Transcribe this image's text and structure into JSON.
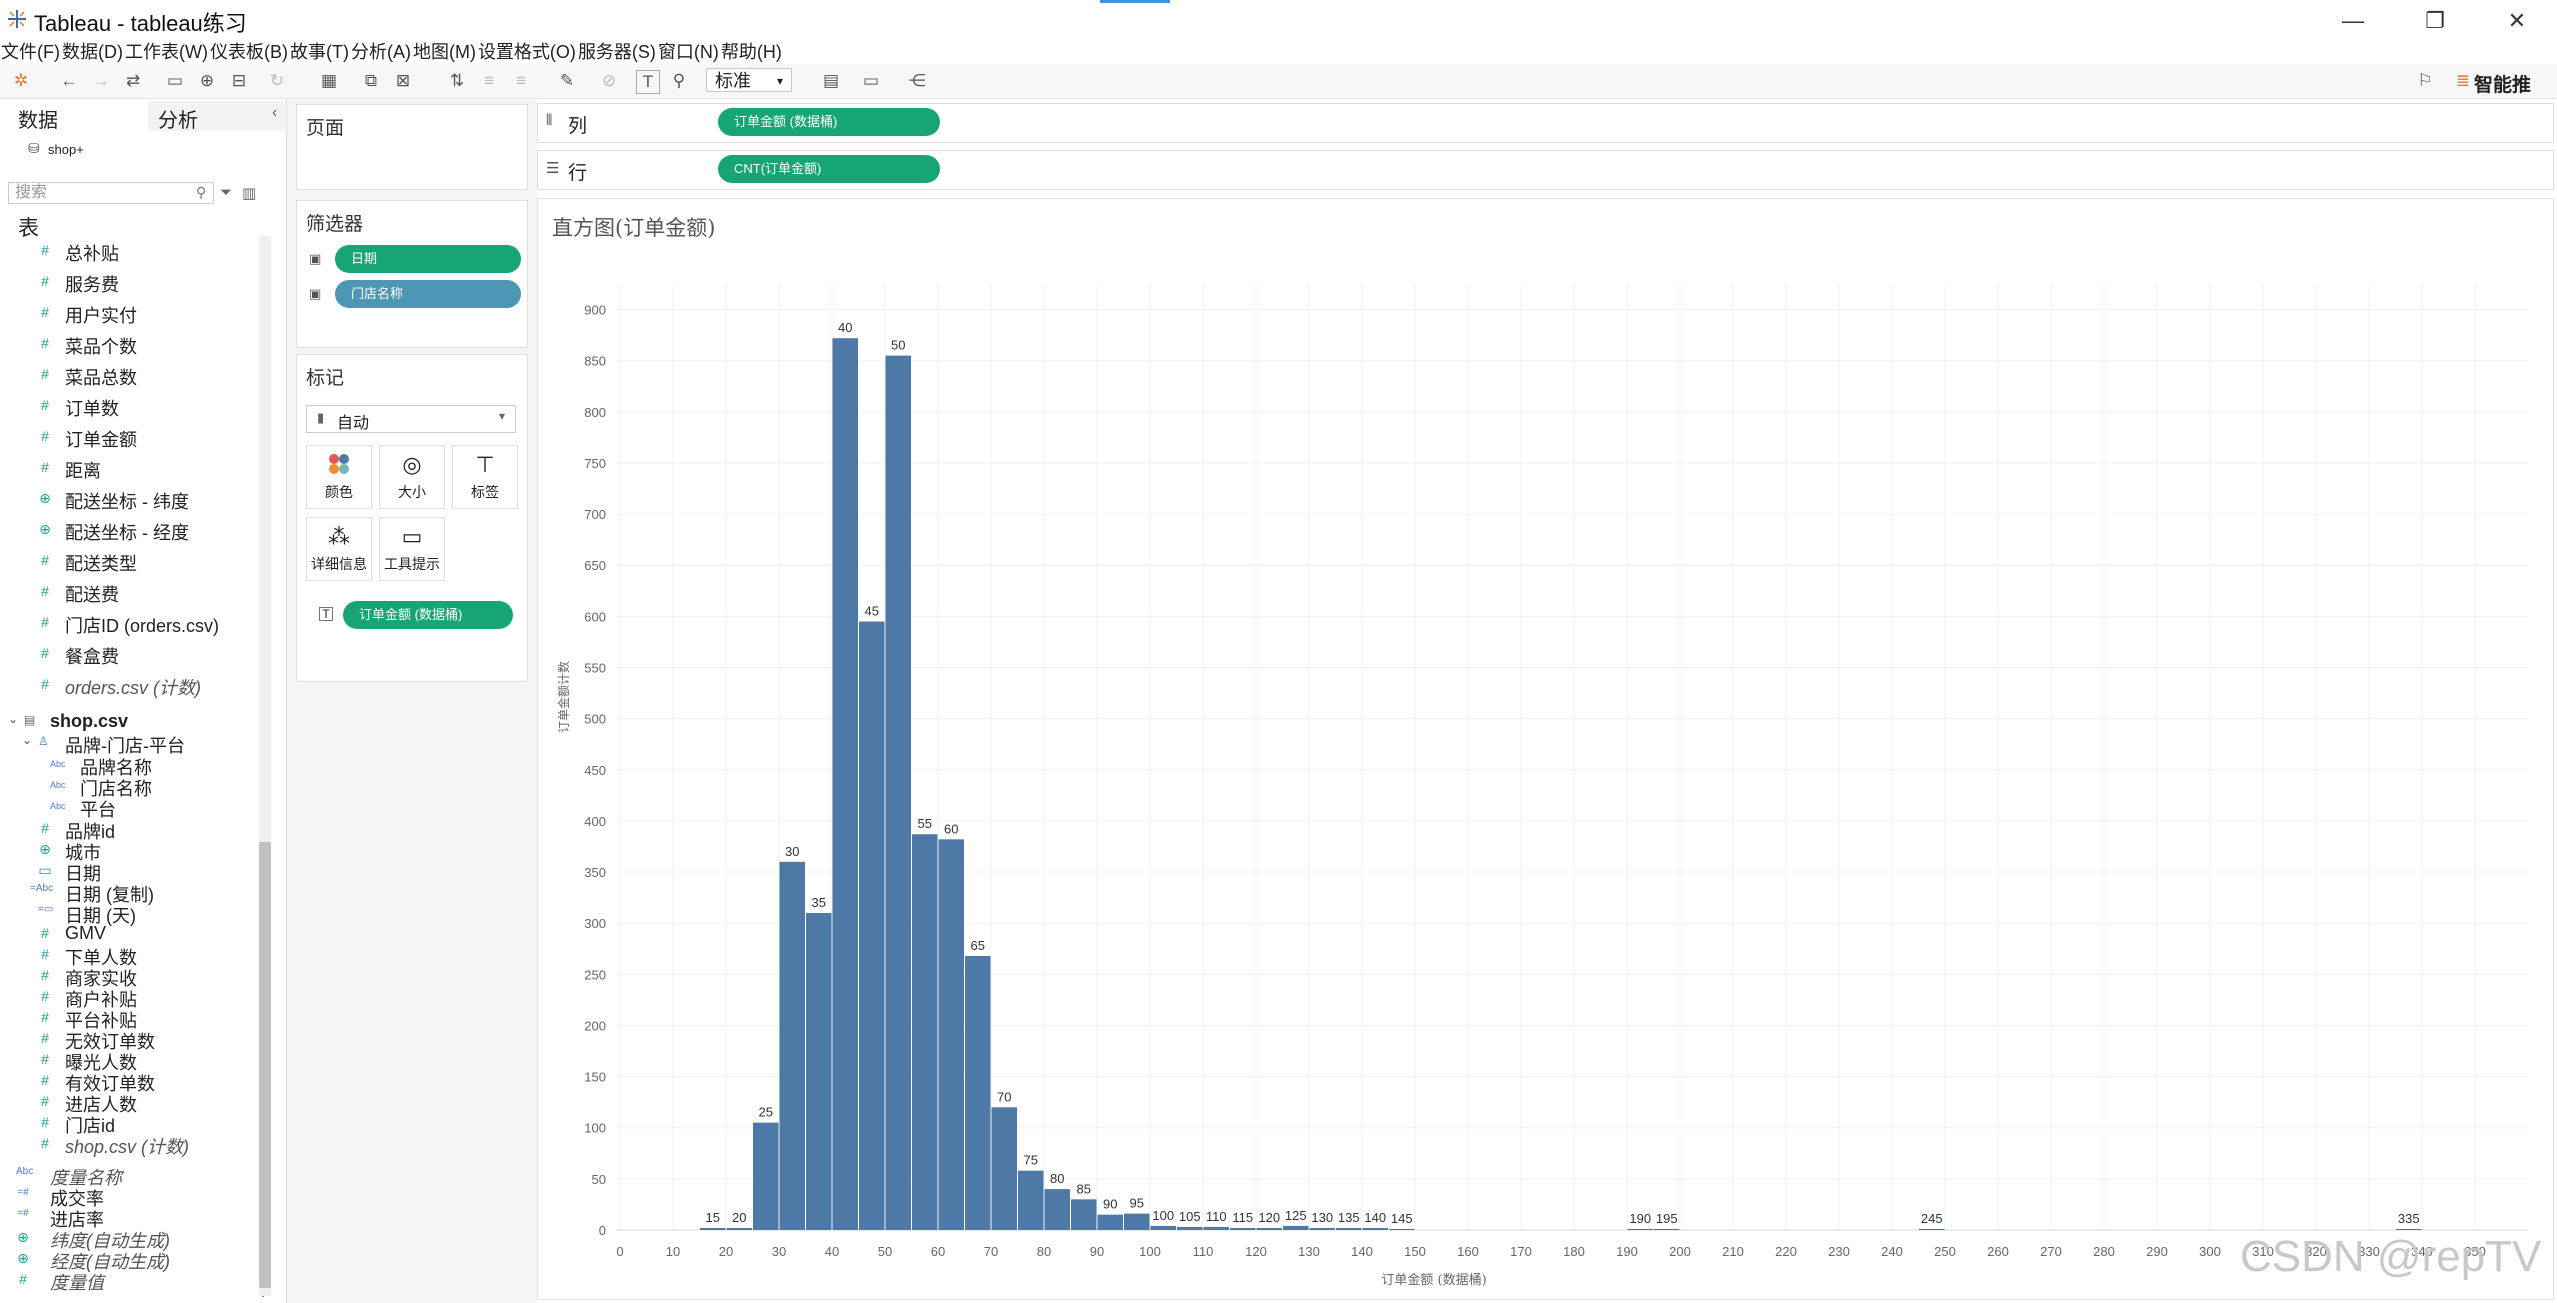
{
  "window": {
    "title": "Tableau - tableau练习",
    "minimize": "—",
    "restore": "❐",
    "close": "✕"
  },
  "menu": [
    "文件(F)",
    "数据(D)",
    "工作表(W)",
    "仪表板(B)",
    "故事(T)",
    "分析(A)",
    "地图(M)",
    "设置格式(O)",
    "服务器(S)",
    "窗口(N)",
    "帮助(H)"
  ],
  "toolbar": {
    "view_size": "标准",
    "smart_recommend": "智能推"
  },
  "left_pane": {
    "tab_data": "数据",
    "tab_analysis": "分析",
    "datasource": "shop+",
    "search_placeholder": "搜索",
    "tables_header": "表",
    "fields": [
      {
        "name": "总补贴",
        "icon": "#",
        "italic": false
      },
      {
        "name": "服务费",
        "icon": "#",
        "italic": false
      },
      {
        "name": "用户实付",
        "icon": "#",
        "italic": false
      },
      {
        "name": "菜品个数",
        "icon": "#",
        "italic": false
      },
      {
        "name": "菜品总数",
        "icon": "#",
        "italic": false
      },
      {
        "name": "订单数",
        "icon": "#",
        "italic": false
      },
      {
        "name": "订单金额",
        "icon": "#",
        "italic": false
      },
      {
        "name": "距离",
        "icon": "#",
        "italic": false
      },
      {
        "name": "配送坐标 - 纬度",
        "icon": "⊕",
        "italic": false
      },
      {
        "name": "配送坐标 - 经度",
        "icon": "⊕",
        "italic": false
      },
      {
        "name": "配送类型",
        "icon": "#",
        "italic": false
      },
      {
        "name": "配送费",
        "icon": "#",
        "italic": false
      },
      {
        "name": "门店ID (orders.csv)",
        "icon": "#",
        "italic": false
      },
      {
        "name": "餐盒费",
        "icon": "#",
        "italic": false
      },
      {
        "name": "orders.csv (计数)",
        "icon": "#",
        "italic": true
      }
    ],
    "shop_table": "shop.csv",
    "hierarchy": "品牌-门店-平台",
    "hierarchy_children": [
      "品牌名称",
      "门店名称",
      "平台"
    ],
    "shop_fields": [
      {
        "name": "品牌id",
        "icon": "#",
        "italic": false
      },
      {
        "name": "城市",
        "icon": "⊕",
        "italic": false
      },
      {
        "name": "日期",
        "icon": "▭",
        "italic": false
      },
      {
        "name": "日期 (复制)",
        "icon": "=Abc",
        "italic": false
      },
      {
        "name": "日期 (天)",
        "icon": "=▭",
        "italic": false
      },
      {
        "name": "GMV",
        "icon": "#",
        "italic": false
      },
      {
        "name": "下单人数",
        "icon": "#",
        "italic": false
      },
      {
        "name": "商家实收",
        "icon": "#",
        "italic": false
      },
      {
        "name": "商户补贴",
        "icon": "#",
        "italic": false
      },
      {
        "name": "平台补贴",
        "icon": "#",
        "italic": false
      },
      {
        "name": "无效订单数",
        "icon": "#",
        "italic": false
      },
      {
        "name": "曝光人数",
        "icon": "#",
        "italic": false
      },
      {
        "name": "有效订单数",
        "icon": "#",
        "italic": false
      },
      {
        "name": "进店人数",
        "icon": "#",
        "italic": false
      },
      {
        "name": "门店id",
        "icon": "#",
        "italic": false
      },
      {
        "name": "shop.csv (计数)",
        "icon": "#",
        "italic": true
      }
    ],
    "extra_fields": [
      {
        "name": "度量名称",
        "icon": "Abc",
        "italic": true
      },
      {
        "name": "成交率",
        "icon": "=#",
        "italic": false
      },
      {
        "name": "进店率",
        "icon": "=#",
        "italic": false
      },
      {
        "name": "纬度(自动生成)",
        "icon": "⊕",
        "italic": true
      },
      {
        "name": "经度(自动生成)",
        "icon": "⊕",
        "italic": true
      },
      {
        "name": "度量值",
        "icon": "#",
        "italic": true
      }
    ]
  },
  "cards": {
    "pages": "页面",
    "filters": "筛选器",
    "filter_pills": [
      "日期",
      "门店名称"
    ],
    "marks": "标记",
    "mark_type": "自动",
    "mark_buttons": [
      "颜色",
      "大小",
      "标签",
      "详细信息",
      "工具提示"
    ],
    "mark_pill": "订单金额 (数据桶)"
  },
  "shelves": {
    "columns_label": "列",
    "columns_pill": "订单金额 (数据桶)",
    "rows_label": "行",
    "rows_pill": "CNT(订单金额)"
  },
  "watermark": "CSDN @repTV",
  "colors": {
    "bar": "#4e79a7",
    "pill_green": "#17a673",
    "pill_blue": "#4e97b4"
  },
  "chart_data": {
    "type": "bar",
    "title": "直方图(订单金额)",
    "xlabel": "订单金额 (数据桶)",
    "ylabel": "订单金额计数",
    "bin_size": 5,
    "xlim": [
      0,
      360
    ],
    "ylim": [
      0,
      925
    ],
    "x_ticks": [
      0,
      10,
      20,
      30,
      40,
      50,
      60,
      70,
      80,
      90,
      100,
      110,
      120,
      130,
      140,
      150,
      160,
      170,
      180,
      190,
      200,
      210,
      220,
      230,
      240,
      250,
      260,
      270,
      280,
      290,
      300,
      310,
      320,
      330,
      340,
      350
    ],
    "y_ticks": [
      0,
      50,
      100,
      150,
      200,
      250,
      300,
      350,
      400,
      450,
      500,
      550,
      600,
      650,
      700,
      750,
      800,
      850,
      900
    ],
    "grid": true,
    "bins": [
      15,
      20,
      25,
      30,
      35,
      40,
      45,
      50,
      55,
      60,
      65,
      70,
      75,
      80,
      85,
      90,
      95,
      100,
      105,
      110,
      115,
      120,
      125,
      130,
      135,
      140,
      145,
      190,
      195,
      245,
      335
    ],
    "values": [
      2,
      2,
      105,
      360,
      310,
      872,
      595,
      855,
      387,
      382,
      268,
      120,
      58,
      40,
      30,
      15,
      16,
      4,
      3,
      3,
      2,
      2,
      4,
      2,
      2,
      2,
      1,
      1,
      1,
      1,
      1
    ]
  }
}
